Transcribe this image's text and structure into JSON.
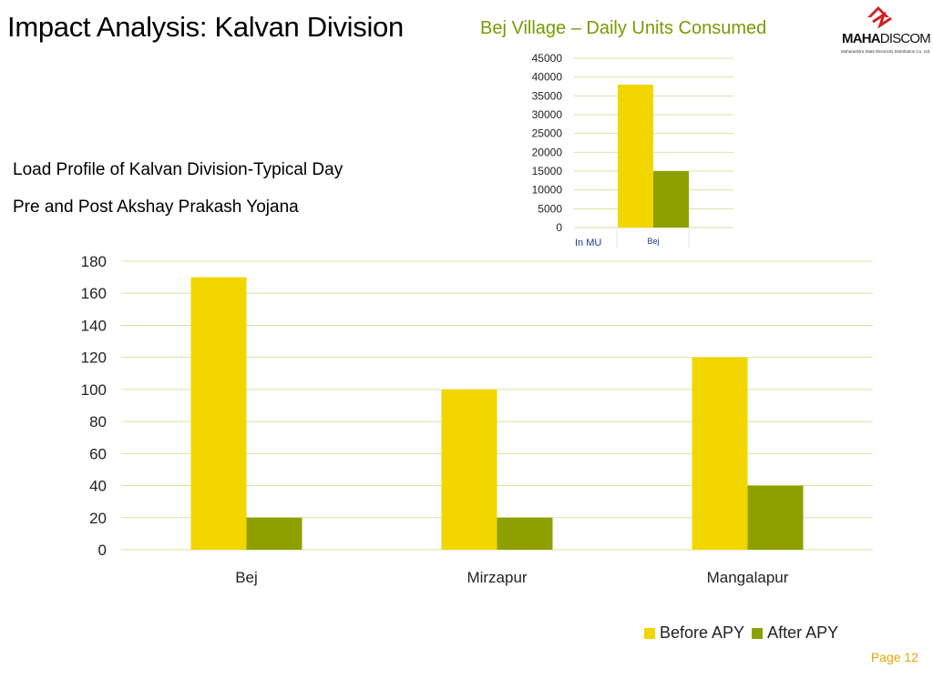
{
  "slide": {
    "title": "Impact Analysis: Kalvan Division",
    "subtitle_line1": "Load Profile of Kalvan Division-Typical Day",
    "subtitle_line2": "Pre and Post Akshay Prakash Yojana",
    "page": "Page 12",
    "logo": {
      "brand_bold": "MAHA",
      "brand_rest": "DISCOM",
      "tagline": "Maharashtra State Electricity Distribution Co. Ltd.",
      "icon": "mahadiscom-logo-icon",
      "color": "#d42020"
    }
  },
  "colors": {
    "before": "#f2d600",
    "after": "#8ea000",
    "grid": "#d9e2a0",
    "small_title": "#7a9a01"
  },
  "chart_data": [
    {
      "type": "bar",
      "title": "",
      "categories": [
        "Bej",
        "Mirzapur",
        "Mangalapur"
      ],
      "series": [
        {
          "name": "Before APY",
          "values": [
            170,
            100,
            120
          ]
        },
        {
          "name": "After APY",
          "values": [
            20,
            20,
            40
          ]
        }
      ],
      "ylim": [
        0,
        180
      ],
      "yticks": [
        0,
        20,
        40,
        60,
        80,
        100,
        120,
        140,
        160,
        180
      ],
      "grid": true,
      "legend": "bottom-right"
    },
    {
      "type": "bar",
      "title": "Bej Village – Daily Units Consumed",
      "categories": [
        "Bej"
      ],
      "series": [
        {
          "values": [
            38000
          ]
        },
        {
          "values": [
            15000
          ]
        }
      ],
      "ylim": [
        0,
        45000
      ],
      "yticks": [
        0,
        5000,
        10000,
        15000,
        20000,
        25000,
        30000,
        35000,
        40000,
        45000
      ],
      "unit_label": "In MU",
      "grid": true
    }
  ]
}
